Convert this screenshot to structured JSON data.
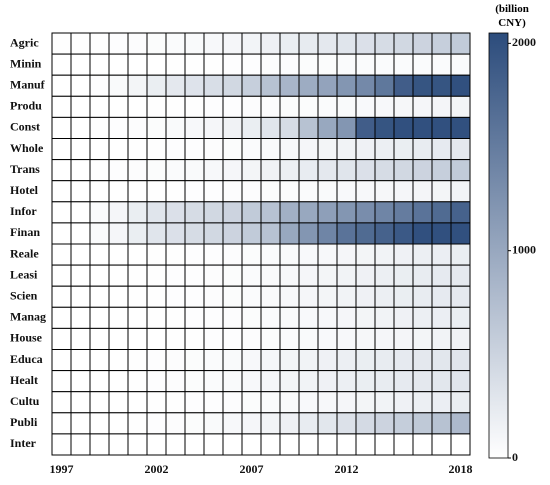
{
  "chart_data": {
    "type": "heatmap",
    "colorbar_label": "(billion CNY)",
    "categories": [
      1997,
      null,
      null,
      null,
      null,
      2002,
      null,
      null,
      null,
      null,
      2007,
      null,
      null,
      null,
      null,
      2012,
      null,
      null,
      null,
      null,
      null,
      2018
    ],
    "rows": [
      "Agric",
      "Minin",
      "Manuf",
      "Produ",
      "Const",
      "Whole",
      "Trans",
      "Hotel",
      "Infor",
      "Finan",
      "Reale",
      "Leasi",
      "Scien",
      "Manag",
      "House",
      "Educa",
      "Healt",
      "Cultu",
      "Publi",
      "Inter"
    ],
    "values": [
      [
        10,
        10,
        10,
        20,
        30,
        40,
        50,
        60,
        80,
        100,
        130,
        170,
        200,
        230,
        260,
        300,
        350,
        400,
        450,
        500,
        550,
        600
      ],
      [
        0,
        0,
        0,
        0,
        0,
        0,
        10,
        10,
        10,
        20,
        20,
        30,
        30,
        40,
        40,
        50,
        50,
        50,
        50,
        50,
        50,
        50
      ],
      [
        0,
        0,
        20,
        60,
        120,
        200,
        260,
        320,
        380,
        450,
        550,
        700,
        850,
        950,
        1050,
        1200,
        1350,
        1550,
        1850,
        1950,
        1950,
        2000
      ],
      [
        0,
        0,
        0,
        0,
        0,
        10,
        10,
        10,
        20,
        20,
        30,
        30,
        40,
        40,
        50,
        60,
        70,
        80,
        90,
        100,
        110,
        120
      ],
      [
        0,
        0,
        10,
        20,
        30,
        40,
        60,
        80,
        100,
        150,
        200,
        300,
        400,
        700,
        1000,
        1200,
        1850,
        1950,
        2000,
        2000,
        2000,
        2000
      ],
      [
        0,
        0,
        0,
        0,
        10,
        10,
        20,
        20,
        30,
        40,
        50,
        60,
        80,
        100,
        120,
        140,
        160,
        180,
        200,
        220,
        240,
        260
      ],
      [
        0,
        0,
        10,
        20,
        30,
        40,
        50,
        60,
        80,
        100,
        120,
        150,
        180,
        220,
        260,
        300,
        350,
        400,
        450,
        500,
        550,
        600
      ],
      [
        0,
        0,
        0,
        0,
        0,
        10,
        10,
        20,
        20,
        30,
        30,
        40,
        40,
        50,
        60,
        70,
        80,
        90,
        100,
        110,
        120,
        130
      ],
      [
        0,
        0,
        50,
        100,
        200,
        300,
        350,
        400,
        450,
        500,
        600,
        700,
        900,
        1000,
        1100,
        1200,
        1300,
        1400,
        1500,
        1600,
        1700,
        1800
      ],
      [
        0,
        0,
        50,
        100,
        200,
        300,
        350,
        400,
        450,
        500,
        600,
        700,
        1000,
        1200,
        1400,
        1600,
        1700,
        1800,
        1900,
        2000,
        2000,
        2000
      ],
      [
        0,
        0,
        0,
        0,
        0,
        10,
        10,
        20,
        20,
        30,
        40,
        50,
        60,
        70,
        80,
        100,
        120,
        140,
        160,
        180,
        190,
        200
      ],
      [
        0,
        0,
        0,
        0,
        10,
        10,
        20,
        20,
        30,
        40,
        50,
        60,
        80,
        100,
        120,
        140,
        160,
        180,
        200,
        220,
        240,
        250
      ],
      [
        0,
        0,
        0,
        0,
        10,
        10,
        20,
        20,
        30,
        40,
        50,
        60,
        80,
        100,
        120,
        140,
        160,
        180,
        200,
        220,
        240,
        250
      ],
      [
        0,
        0,
        0,
        0,
        0,
        10,
        10,
        20,
        20,
        30,
        40,
        50,
        60,
        70,
        80,
        100,
        120,
        140,
        160,
        180,
        190,
        200
      ],
      [
        0,
        0,
        0,
        0,
        0,
        0,
        10,
        10,
        20,
        20,
        30,
        40,
        50,
        60,
        70,
        80,
        90,
        100,
        110,
        120,
        140,
        150
      ],
      [
        0,
        0,
        0,
        0,
        10,
        20,
        30,
        40,
        50,
        60,
        80,
        100,
        120,
        140,
        160,
        180,
        200,
        220,
        240,
        260,
        280,
        300
      ],
      [
        0,
        0,
        0,
        0,
        10,
        20,
        30,
        40,
        50,
        60,
        80,
        100,
        120,
        140,
        160,
        180,
        200,
        220,
        240,
        260,
        280,
        300
      ],
      [
        0,
        0,
        0,
        0,
        0,
        10,
        10,
        20,
        20,
        30,
        40,
        50,
        60,
        70,
        80,
        100,
        120,
        140,
        160,
        180,
        190,
        200
      ],
      [
        0,
        0,
        0,
        0,
        10,
        20,
        30,
        40,
        60,
        80,
        100,
        130,
        170,
        220,
        280,
        340,
        420,
        500,
        560,
        620,
        700,
        800
      ],
      [
        0,
        0,
        0,
        0,
        0,
        0,
        0,
        0,
        0,
        0,
        0,
        0,
        0,
        0,
        0,
        0,
        0,
        0,
        0,
        0,
        0,
        0
      ]
    ],
    "colors": [
      "#ffffff",
      "#2c4c7c"
    ],
    "vlim": [
      0,
      2050
    ],
    "vticks": [
      0,
      1000,
      2000
    ]
  }
}
